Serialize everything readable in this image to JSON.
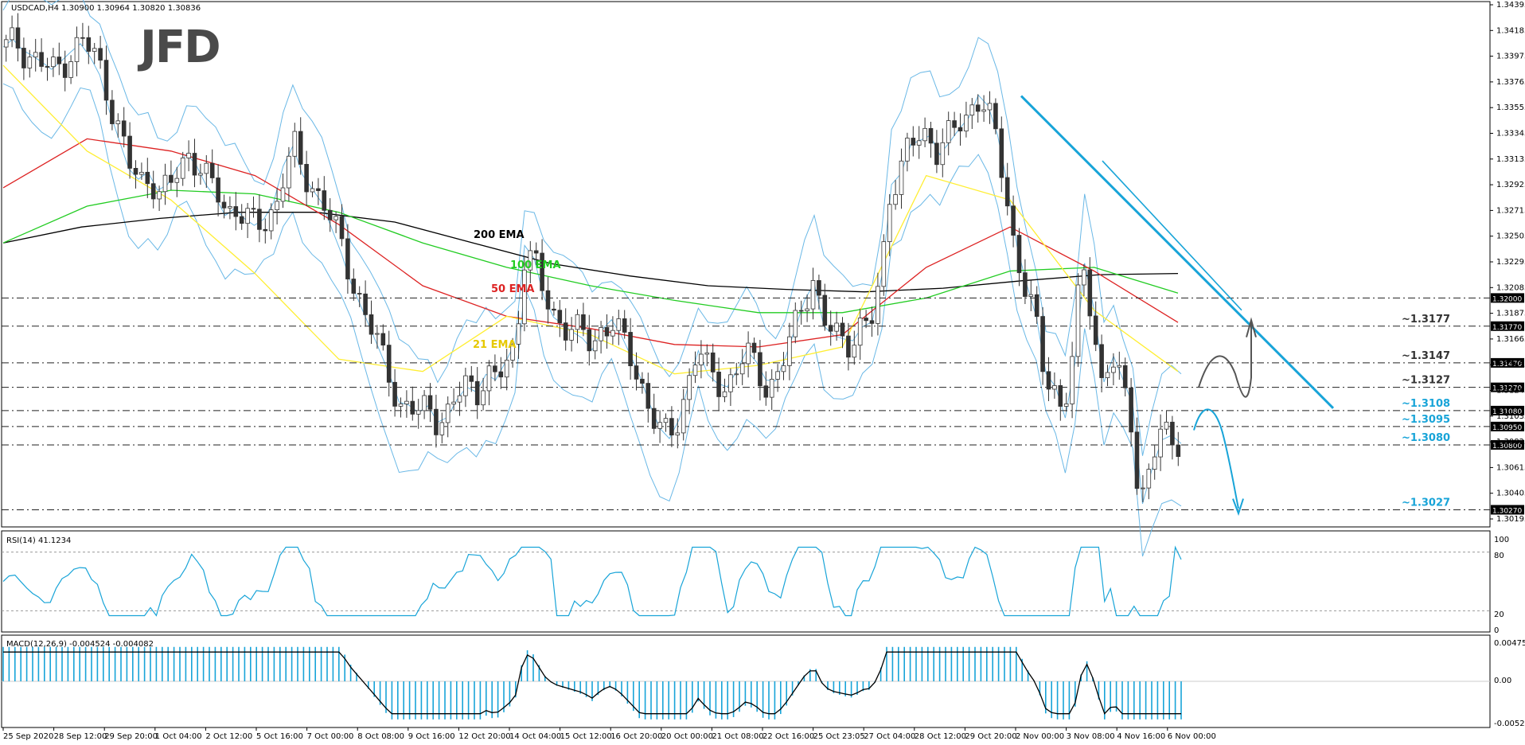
{
  "header": {
    "symbol_info": "USDCAD,H4  1.30900 1.30964 1.30820 1.30836"
  },
  "logo": "JFD",
  "rsi": {
    "label": "RSI(14) 41.1234",
    "ticks": [
      "100",
      "80",
      "20",
      "0"
    ]
  },
  "macd": {
    "label": "MACD(12,26,9) -0.004524 -0.004082",
    "ticks": [
      "0.004754",
      "0.00",
      "-0.005274"
    ]
  },
  "price_ticks": [
    "1.34395",
    "1.34185",
    "1.33975",
    "1.33765",
    "1.33555",
    "1.33345",
    "1.33135",
    "1.32925",
    "1.32715",
    "1.32505",
    "1.32295",
    "1.32085",
    "1.31875",
    "1.31665",
    "1.31455",
    "1.31245",
    "1.31035",
    "1.30825",
    "1.30615",
    "1.30405",
    "1.30195"
  ],
  "time_labels": [
    "25 Sep 2020",
    "28 Sep 12:00",
    "29 Sep 20:00",
    "1 Oct 04:00",
    "2 Oct 12:00",
    "5 Oct 16:00",
    "7 Oct 00:00",
    "8 Oct 08:00",
    "9 Oct 16:00",
    "12 Oct 20:00",
    "14 Oct 04:00",
    "15 Oct 12:00",
    "16 Oct 20:00",
    "20 Oct 00:00",
    "21 Oct 08:00",
    "22 Oct 16:00",
    "25 Oct 23:05",
    "27 Oct 04:00",
    "28 Oct 12:00",
    "29 Oct 20:00",
    "2 Nov 00:00",
    "3 Nov 08:00",
    "4 Nov 16:00",
    "6 Nov 00:00"
  ],
  "ema_labels": {
    "ema200": "200 EMA",
    "ema100": "100 EMA",
    "ema50": "50 EMA",
    "ema21": "21 EMA"
  },
  "colors": {
    "ema200": "#000000",
    "ema100": "#22cc22",
    "ema50": "#dd2222",
    "ema21": "#ffee33",
    "bands": "#6ab8e6",
    "trend": "#18a4d8",
    "level_tag_bg": "#000000"
  },
  "chart_data": {
    "type": "candlestick",
    "symbol": "USDCAD",
    "timeframe": "H4",
    "ylim": [
      1.30195,
      1.34395
    ],
    "levels": [
      {
        "price": 1.32,
        "tag": "1.32000"
      },
      {
        "price": 1.3177,
        "tag": "1.31770",
        "label": "~1.3177",
        "label_color": "#333333"
      },
      {
        "price": 1.3147,
        "tag": "1.31470",
        "label": "~1.3147",
        "label_color": "#333333"
      },
      {
        "price": 1.3127,
        "tag": "1.31270",
        "label": "~1.3127",
        "label_color": "#333333"
      },
      {
        "price": 1.3108,
        "tag": "1.31080",
        "label": "~1.3108",
        "label_color": "#18a4d8"
      },
      {
        "price": 1.3095,
        "tag": "1.30950",
        "label": "~1.3095",
        "label_color": "#18a4d8"
      },
      {
        "price": 1.308,
        "tag": "1.30800",
        "label": "~1.3080",
        "label_color": "#18a4d8"
      },
      {
        "price": 1.3027,
        "tag": "1.30270",
        "label": "~1.3027",
        "label_color": "#18a4d8"
      }
    ],
    "candle_path": [
      1.3405,
      1.341,
      1.34,
      1.3395,
      1.339,
      1.3385,
      1.3393,
      1.3402,
      1.341,
      1.34,
      1.3385,
      1.3355,
      1.333,
      1.3305,
      1.3295,
      1.33,
      1.3285,
      1.329,
      1.3305,
      1.3318,
      1.331,
      1.3295,
      1.3285,
      1.327,
      1.3275,
      1.3265,
      1.3258,
      1.3262,
      1.3275,
      1.3305,
      1.3322,
      1.33,
      1.329,
      1.328,
      1.326,
      1.324,
      1.3215,
      1.3195,
      1.3175,
      1.3155,
      1.3135,
      1.3112,
      1.311,
      1.3105,
      1.3112,
      1.31,
      1.3105,
      1.312,
      1.313,
      1.3125,
      1.3138,
      1.3132,
      1.3145,
      1.316,
      1.324,
      1.323,
      1.32,
      1.3185,
      1.318,
      1.3175,
      1.317,
      1.316,
      1.3175,
      1.3182,
      1.3168,
      1.315,
      1.3132,
      1.311,
      1.3092,
      1.3085,
      1.3102,
      1.3132,
      1.316,
      1.314,
      1.3132,
      1.3128,
      1.314,
      1.3155,
      1.3145,
      1.313,
      1.313,
      1.315,
      1.3175,
      1.32,
      1.3215,
      1.318,
      1.3172,
      1.3168,
      1.3165,
      1.3175,
      1.3178,
      1.3215,
      1.329,
      1.33,
      1.3325,
      1.333,
      1.3335,
      1.332,
      1.333,
      1.334,
      1.3348,
      1.3365,
      1.3355,
      1.333,
      1.329,
      1.324,
      1.321,
      1.3185,
      1.314,
      1.313,
      1.3105,
      1.315,
      1.323,
      1.319,
      1.313,
      1.315,
      1.313,
      1.311,
      1.303,
      1.306,
      1.3085,
      1.309,
      1.3084
    ],
    "ema200": [
      1.3245,
      1.3258,
      1.3265,
      1.327,
      1.327,
      1.3262,
      1.3245,
      1.3228,
      1.3218,
      1.321,
      1.3207,
      1.3205,
      1.3208,
      1.3214,
      1.3219,
      1.322
    ],
    "ema100": [
      1.3245,
      1.3275,
      1.3288,
      1.3285,
      1.327,
      1.3245,
      1.3225,
      1.321,
      1.3198,
      1.3188,
      1.3188,
      1.32,
      1.3222,
      1.3225,
      1.3204
    ],
    "ema50": [
      1.329,
      1.333,
      1.332,
      1.33,
      1.326,
      1.321,
      1.3185,
      1.3175,
      1.3162,
      1.316,
      1.317,
      1.3225,
      1.3258,
      1.3222,
      1.318
    ],
    "ema21": [
      1.339,
      1.332,
      1.328,
      1.322,
      1.315,
      1.314,
      1.3185,
      1.317,
      1.3138,
      1.3145,
      1.316,
      1.33,
      1.328,
      1.319,
      1.314
    ]
  }
}
